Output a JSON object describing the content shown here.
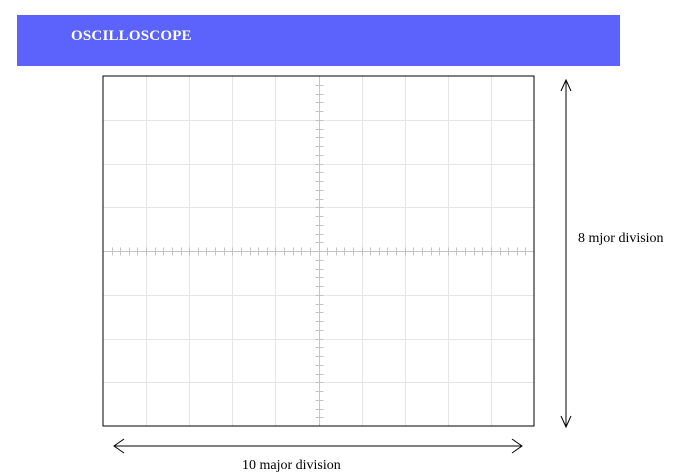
{
  "header": {
    "title": "OSCILLOSCOPE",
    "background_color": "#5b63fc",
    "text_color": "#ffffff"
  },
  "screen": {
    "major_divisions_horizontal": 10,
    "major_divisions_vertical": 8,
    "minor_divisions_per_major": 5,
    "grid_color": "#e6e6e6",
    "axis_tick_color": "#c4c4c4",
    "border_color": "#000000"
  },
  "dimensions": {
    "width_label": "10 major division",
    "height_label": "8 mjor division"
  }
}
